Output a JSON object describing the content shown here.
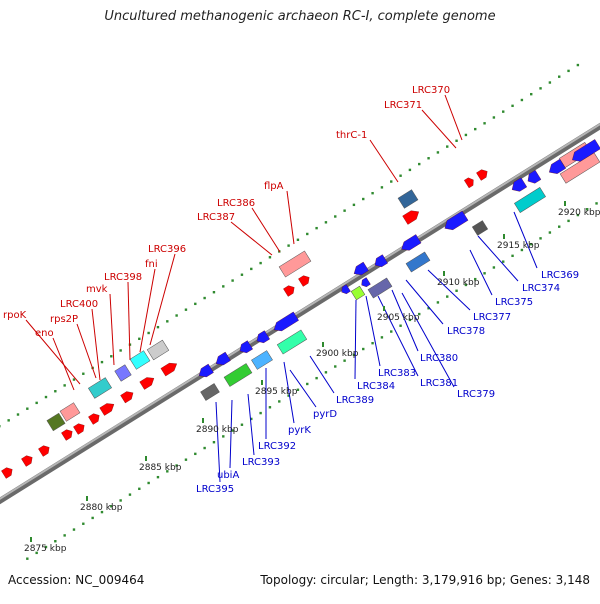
{
  "title": "Uncultured methanogenic archaeon RC-I, complete genome",
  "footer": {
    "accession": "Accession: NC_009464",
    "summary": "Topology: circular; Length: 3,179,916 bp; Genes: 3,148"
  },
  "colors": {
    "backbone": "#8a8a8a",
    "tick_dot": "#2f8a2f",
    "forward_label": "#cc0000",
    "reverse_label": "#0000cc",
    "forward_arrow": "#ff0000",
    "reverse_arrow": "#1a1aff"
  },
  "scale_labels": [
    "2875 kbp",
    "2880 kbp",
    "2885 kbp",
    "2890 kbp",
    "2895 kbp",
    "2900 kbp",
    "2905 kbp",
    "2910 kbp",
    "2915 kbp",
    "2920 kbp"
  ],
  "forward_genes": [
    "rpoK",
    "eno",
    "rps2P",
    "LRC400",
    "mvk",
    "LRC398",
    "fni",
    "LRC396",
    "LRC387",
    "LRC386",
    "flpA",
    "thrC-1",
    "LRC371",
    "LRC370"
  ],
  "reverse_genes": [
    "LRC395",
    "ubiA",
    "LRC393",
    "LRC392",
    "pyrK",
    "pyrD",
    "LRC389",
    "LRC384",
    "LRC383",
    "LRC381",
    "LRC380",
    "LRC379",
    "LRC378",
    "LRC377",
    "LRC375",
    "LRC374",
    "LRC369"
  ]
}
